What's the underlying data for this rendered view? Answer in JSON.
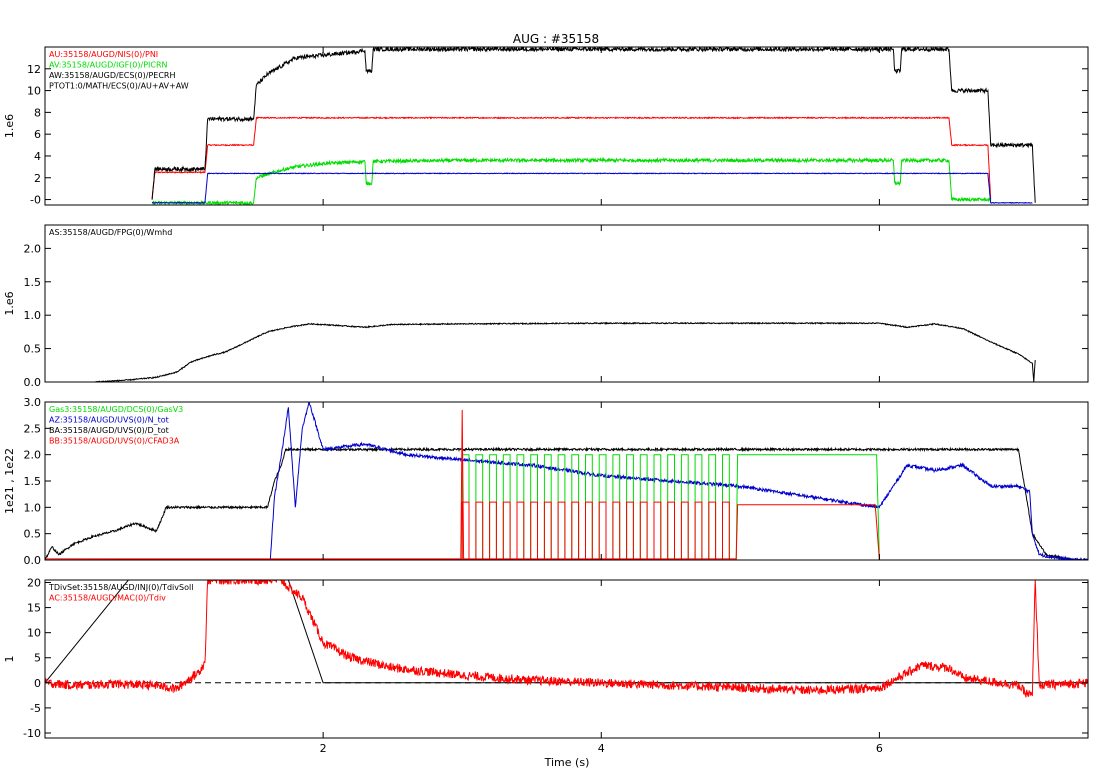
{
  "title": "AUG : #35158",
  "xlabel": "Time (s)",
  "x_ticks": [
    2,
    4,
    6
  ],
  "xlim": [
    0,
    7.5
  ],
  "colors": {
    "black": "#000000",
    "red": "#ff0000",
    "green": "#00dd00",
    "blue": "#0000cc"
  },
  "chart_data": [
    {
      "type": "line",
      "ylabel": "1.e6",
      "ylim": [
        -0.5,
        14
      ],
      "y_ticks": [
        {
          "v": 0,
          "label": "-0"
        },
        {
          "v": 2,
          "label": "2"
        },
        {
          "v": 4,
          "label": "4"
        },
        {
          "v": 6,
          "label": "6"
        },
        {
          "v": 8,
          "label": "8"
        },
        {
          "v": 10,
          "label": "10"
        },
        {
          "v": 12,
          "label": "12"
        }
      ],
      "legend": [
        {
          "text": "AU:35158/AUGD/NIS(0)/PNI",
          "color": "#ff0000"
        },
        {
          "text": "AV:35158/AUGD/IGF(0)/PICRN",
          "color": "#00dd00"
        },
        {
          "text": "AW:35158/AUGD/ECS(0)/PECRH",
          "color": "#000000"
        },
        {
          "text": "PTOT1:0/MATH/ECS(0)/AU+AV+AW",
          "color": "#000000"
        }
      ],
      "series": [
        {
          "name": "AU:35158/AUGD/NIS(0)/PNI",
          "color": "#ff0000",
          "noise": 0.05,
          "x": [
            0.77,
            0.79,
            1.15,
            1.17,
            1.5,
            1.52,
            6.5,
            6.52,
            6.78,
            6.8
          ],
          "y": [
            0,
            2.5,
            2.5,
            5,
            5,
            7.5,
            7.5,
            5,
            5,
            0
          ]
        },
        {
          "name": "AV:35158/AUGD/IGF(0)/PICRN",
          "color": "#00dd00",
          "noise": 0.15,
          "x": [
            0.77,
            1.5,
            1.52,
            1.7,
            1.8,
            2.0,
            2.3,
            2.31,
            2.35,
            2.36,
            3.0,
            6.1,
            6.11,
            6.15,
            6.16,
            6.5,
            6.52,
            6.8
          ],
          "y": [
            -0.3,
            -0.3,
            2.0,
            2.7,
            3.0,
            3.3,
            3.5,
            1.5,
            1.5,
            3.5,
            3.6,
            3.6,
            1.5,
            1.5,
            3.6,
            3.6,
            0,
            0
          ]
        },
        {
          "name": "AW:35158/AUGD/ECS(0)/PECRH",
          "color": "#0000cc",
          "noise": 0.03,
          "x": [
            0.77,
            1.15,
            1.17,
            2.5,
            6.78,
            6.8,
            7.1
          ],
          "y": [
            -0.3,
            -0.3,
            2.4,
            2.4,
            2.4,
            -0.3,
            -0.3
          ]
        },
        {
          "name": "PTOT1:0/MATH/ECS(0)/AU+AV+AW",
          "color": "#000000",
          "noise": 0.18,
          "x": [
            0.77,
            0.79,
            1.15,
            1.17,
            1.5,
            1.52,
            1.6,
            1.8,
            2.2,
            2.3,
            2.31,
            2.35,
            2.36,
            3.0,
            6.1,
            6.11,
            6.15,
            6.16,
            6.5,
            6.52,
            6.78,
            6.8,
            7.1,
            7.12
          ],
          "y": [
            0,
            2.8,
            2.8,
            7.4,
            7.4,
            10.5,
            11.5,
            13.0,
            13.5,
            13.7,
            11.8,
            11.8,
            13.8,
            13.8,
            13.8,
            11.8,
            11.8,
            13.8,
            13.8,
            10.0,
            10.0,
            5.0,
            5.0,
            -0.3
          ]
        }
      ]
    },
    {
      "type": "line",
      "ylabel": "1.e6",
      "ylim": [
        0,
        2.35
      ],
      "y_ticks": [
        {
          "v": 0,
          "label": "0.0"
        },
        {
          "v": 0.5,
          "label": "0.5"
        },
        {
          "v": 1.0,
          "label": "1.0"
        },
        {
          "v": 1.5,
          "label": "1.5"
        },
        {
          "v": 2.0,
          "label": "2.0"
        }
      ],
      "legend": [
        {
          "text": "AS:35158/AUGD/FPG(0)/Wmhd",
          "color": "#000000"
        }
      ],
      "series": [
        {
          "name": "AS:35158/AUGD/FPG(0)/Wmhd",
          "color": "#000000",
          "noise": 0.008,
          "x": [
            0.35,
            0.6,
            0.8,
            0.95,
            1.05,
            1.2,
            1.3,
            1.45,
            1.6,
            1.75,
            1.9,
            2.0,
            2.3,
            2.5,
            3.0,
            4.0,
            5.0,
            6.0,
            6.2,
            6.4,
            6.6,
            6.8,
            7.0,
            7.1,
            7.11,
            7.12
          ],
          "y": [
            0.0,
            0.03,
            0.07,
            0.15,
            0.3,
            0.4,
            0.45,
            0.6,
            0.75,
            0.82,
            0.87,
            0.86,
            0.82,
            0.86,
            0.87,
            0.88,
            0.88,
            0.88,
            0.82,
            0.87,
            0.8,
            0.6,
            0.42,
            0.28,
            0.0,
            0.33
          ]
        }
      ]
    },
    {
      "type": "line",
      "ylabel": "1e21 , 1e22",
      "ylim": [
        0,
        3.0
      ],
      "y_ticks": [
        {
          "v": 0,
          "label": "0.0"
        },
        {
          "v": 0.5,
          "label": "0.5"
        },
        {
          "v": 1.0,
          "label": "1.0"
        },
        {
          "v": 1.5,
          "label": "1.5"
        },
        {
          "v": 2.0,
          "label": "2.0"
        },
        {
          "v": 2.5,
          "label": "2.5"
        },
        {
          "v": 3.0,
          "label": "3.0"
        }
      ],
      "legend": [
        {
          "text": "Gas3:35158/AUGD/DCS(0)/GasV3",
          "color": "#00dd00"
        },
        {
          "text": "AZ:35158/AUGD/UVS(0)/N_tot",
          "color": "#0000cc"
        },
        {
          "text": "BA:35158/AUGD/UVS(0)/D_tot",
          "color": "#000000"
        },
        {
          "text": "BB:35158/AUGD/UVS(0)/CFAD3A",
          "color": "#ff0000"
        }
      ],
      "series": [
        {
          "name": "BA:35158/AUGD/UVS(0)/D_tot",
          "color": "#000000",
          "noise": 0.02,
          "x": [
            0.0,
            0.05,
            0.1,
            0.2,
            0.35,
            0.5,
            0.65,
            0.8,
            0.85,
            0.87,
            1.6,
            1.65,
            1.7,
            1.73,
            3.0,
            4.0,
            5.0,
            6.0,
            7.0,
            7.1,
            7.2,
            7.4,
            7.5
          ],
          "y": [
            0.0,
            0.25,
            0.1,
            0.3,
            0.45,
            0.55,
            0.7,
            0.55,
            0.85,
            1.0,
            1.0,
            1.5,
            1.8,
            2.1,
            2.1,
            2.1,
            2.1,
            2.1,
            2.1,
            0.5,
            0.1,
            0.0,
            0.0
          ]
        },
        {
          "name": "AZ:35158/AUGD/UVS(0)/N_tot",
          "color": "#0000cc",
          "noise": 0.03,
          "x": [
            1.62,
            1.65,
            1.7,
            1.75,
            1.8,
            1.85,
            1.9,
            2.0,
            2.3,
            2.6,
            3.0,
            3.5,
            4.0,
            4.5,
            5.0,
            5.5,
            6.0,
            6.2,
            6.4,
            6.6,
            6.8,
            7.0,
            7.08,
            7.1,
            7.15,
            7.25,
            7.4,
            7.5
          ],
          "y": [
            0.0,
            1.2,
            2.0,
            2.9,
            1.0,
            2.5,
            3.0,
            2.1,
            2.2,
            2.0,
            1.9,
            1.8,
            1.6,
            1.5,
            1.4,
            1.2,
            1.0,
            1.8,
            1.7,
            1.8,
            1.4,
            1.4,
            1.3,
            0.5,
            0.1,
            0.05,
            0.0,
            0.0
          ]
        },
        {
          "name": "Gas3:35158/AUGD/DCS(0)/GasV3",
          "color": "#00dd00",
          "noise": 0,
          "kind": "square",
          "start": 3.0,
          "end": 4.97,
          "period": 0.0985,
          "high": 2.0,
          "low": 0,
          "x": [
            4.97,
            4.98,
            5.98,
            6.0
          ],
          "y": [
            0,
            2.0,
            2.0,
            0
          ]
        },
        {
          "name": "BB:35158/AUGD/UVS(0)/CFAD3A",
          "color": "#ff0000",
          "noise": 0,
          "kind": "square",
          "start": 3.0,
          "end": 4.97,
          "period": 0.0985,
          "high": 1.1,
          "low": 0.02,
          "x": [
            0.0,
            2.99,
            3.0,
            3.01,
            4.97,
            4.98,
            5.95,
            5.97,
            6.0,
            7.5
          ],
          "y": [
            0,
            0,
            2.85,
            0.02,
            0.02,
            1.05,
            1.05,
            1.05,
            0,
            0
          ]
        }
      ]
    },
    {
      "type": "line",
      "ylabel": "1",
      "ylim": [
        -11,
        20.5
      ],
      "y_ticks": [
        {
          "v": -10,
          "label": "-10"
        },
        {
          "v": -5,
          "label": "-5"
        },
        {
          "v": 0,
          "label": "0"
        },
        {
          "v": 5,
          "label": "5"
        },
        {
          "v": 10,
          "label": "10"
        },
        {
          "v": 15,
          "label": "15"
        },
        {
          "v": 20,
          "label": "20"
        }
      ],
      "legend": [
        {
          "text": "TDivSet:35158/AUGD/INJ(0)/TdivSoll",
          "color": "#000000"
        },
        {
          "text": "AC:35158/AUGD/MAC(0)/Tdiv",
          "color": "#ff0000"
        }
      ],
      "series": [
        {
          "name": "zero-line",
          "color": "#000000",
          "noise": 0,
          "dashed": true,
          "x": [
            0.0,
            7.5
          ],
          "y": [
            0,
            0
          ]
        },
        {
          "name": "TDivSet:35158/AUGD/INJ(0)/TdivSoll",
          "color": "#000000",
          "noise": 0,
          "x": [
            0.0,
            0.6,
            0.65,
            1.7,
            1.75,
            2.0,
            7.5
          ],
          "y": [
            0,
            20.5,
            20.5,
            20.5,
            20.5,
            0,
            0
          ]
        },
        {
          "name": "AC:35158/AUGD/MAC(0)/Tdiv",
          "color": "#ff0000",
          "noise": 0.9,
          "x": [
            0.0,
            0.2,
            0.5,
            0.8,
            0.95,
            1.0,
            1.1,
            1.15,
            1.17,
            1.25,
            1.7,
            1.75,
            1.85,
            1.9,
            2.0,
            2.2,
            2.5,
            3.0,
            3.5,
            4.0,
            4.5,
            5.0,
            5.5,
            6.0,
            6.2,
            6.3,
            6.5,
            6.6,
            7.0,
            7.05,
            7.1,
            7.12,
            7.15,
            7.5
          ],
          "y": [
            0,
            -0.5,
            -0.2,
            -0.5,
            -1.2,
            0,
            2,
            4,
            20.5,
            20.5,
            20.5,
            19,
            17,
            14,
            8,
            5,
            3,
            1.5,
            0.5,
            0,
            -0.5,
            -1,
            -1.5,
            -1,
            2,
            3.5,
            3,
            1,
            -0.5,
            -2,
            -2.5,
            20.5,
            -0.5,
            0
          ]
        }
      ]
    }
  ]
}
